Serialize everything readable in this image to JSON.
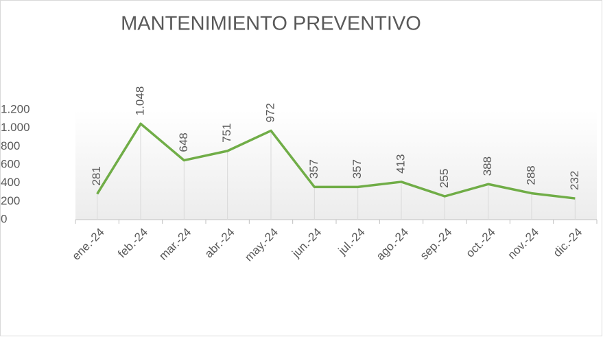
{
  "chart_data": {
    "type": "line",
    "title": "MANTENIMIENTO PREVENTIVO",
    "categories": [
      "ene.-24",
      "feb.-24",
      "mar.-24",
      "abr.-24",
      "may.-24",
      "jun.-24",
      "jul.-24",
      "ago.-24",
      "sep.-24",
      "oct.-24",
      "nov.-24",
      "dic.-24"
    ],
    "values": [
      281,
      1048,
      648,
      751,
      972,
      357,
      357,
      413,
      255,
      388,
      288,
      232
    ],
    "value_labels": [
      "281",
      "1.048",
      "648",
      "751",
      "972",
      "357",
      "357",
      "413",
      "255",
      "388",
      "288",
      "232"
    ],
    "color": "#70ad47",
    "ylim": [
      0,
      1200
    ],
    "yticks": [
      0,
      200,
      400,
      600,
      800,
      {
        "value": 1000,
        "label": "1.000"
      },
      {
        "value": 1200,
        "label": "1.200"
      }
    ],
    "grid": true
  }
}
